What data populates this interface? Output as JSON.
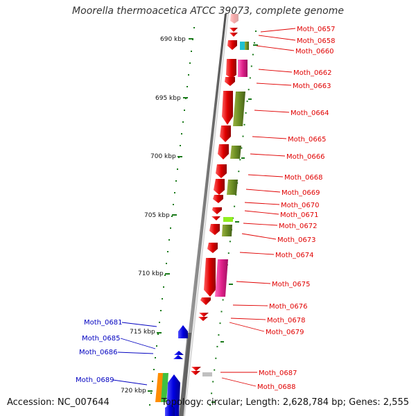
{
  "title": "Moorella thermoacetica ATCC 39073, complete genome",
  "accession": "Accession: NC_007644",
  "summary": "Topology: circular; Length: 2,628,784 bp; Genes: 2,555",
  "colors": {
    "forward_gene": "#e00000",
    "reverse_gene": "#0000e0",
    "backbone": "#808080",
    "tick": "#1a7a1a",
    "olive_feature": "#6b8e23",
    "magenta_feature": "#e0208a",
    "cyan_feature": "#20c0d0",
    "lime_feature": "#90ee20",
    "orange_feature": "#ff8c00",
    "green_feature": "#40c040",
    "grey_feature": "#c0c0c0"
  },
  "scale_labels": [
    "690 kbp",
    "695 kbp",
    "700 kbp",
    "705 kbp",
    "710 kbp",
    "715 kbp",
    "720 kbp"
  ],
  "forward_genes": [
    "Moth_0657",
    "Moth_0658",
    "Moth_0660",
    "Moth_0662",
    "Moth_0663",
    "Moth_0664",
    "Moth_0665",
    "Moth_0666",
    "Moth_0668",
    "Moth_0669",
    "Moth_0670",
    "Moth_0671",
    "Moth_0672",
    "Moth_0673",
    "Moth_0674",
    "Moth_0675",
    "Moth_0676",
    "Moth_0678",
    "Moth_0679",
    "Moth_0687",
    "Moth_0688"
  ],
  "reverse_genes": [
    "Moth_0681",
    "Moth_0685",
    "Moth_0686",
    "Moth_0689"
  ]
}
